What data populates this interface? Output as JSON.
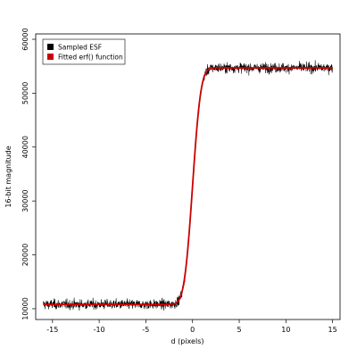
{
  "chart_data": {
    "type": "line",
    "xlabel": "d (pixels)",
    "ylabel": "16-bit magnitude",
    "xlim": [
      -16.8,
      15.8
    ],
    "ylim": [
      8000,
      61000
    ],
    "x_ticks": [
      -15,
      -10,
      -5,
      0,
      5,
      10,
      15
    ],
    "y_ticks": [
      10000,
      20000,
      30000,
      40000,
      50000,
      60000
    ],
    "legend_position": "top-left",
    "grid": false,
    "x_range": [
      -16,
      15
    ],
    "series": [
      {
        "name": "Sampled ESF",
        "color": "#000000",
        "style": "noisy samples",
        "description_values": {
          "low_level": 10800,
          "high_level": 54700,
          "noise_amplitude": 1400,
          "edge_center": 0.0
        }
      },
      {
        "name": "Fitted erf() function",
        "color": "#cc0000",
        "style": "smooth curve",
        "description_values": {
          "low_level": 10800,
          "high_level": 54700,
          "edge_center": 0.0,
          "sigma": 0.7
        }
      }
    ]
  }
}
